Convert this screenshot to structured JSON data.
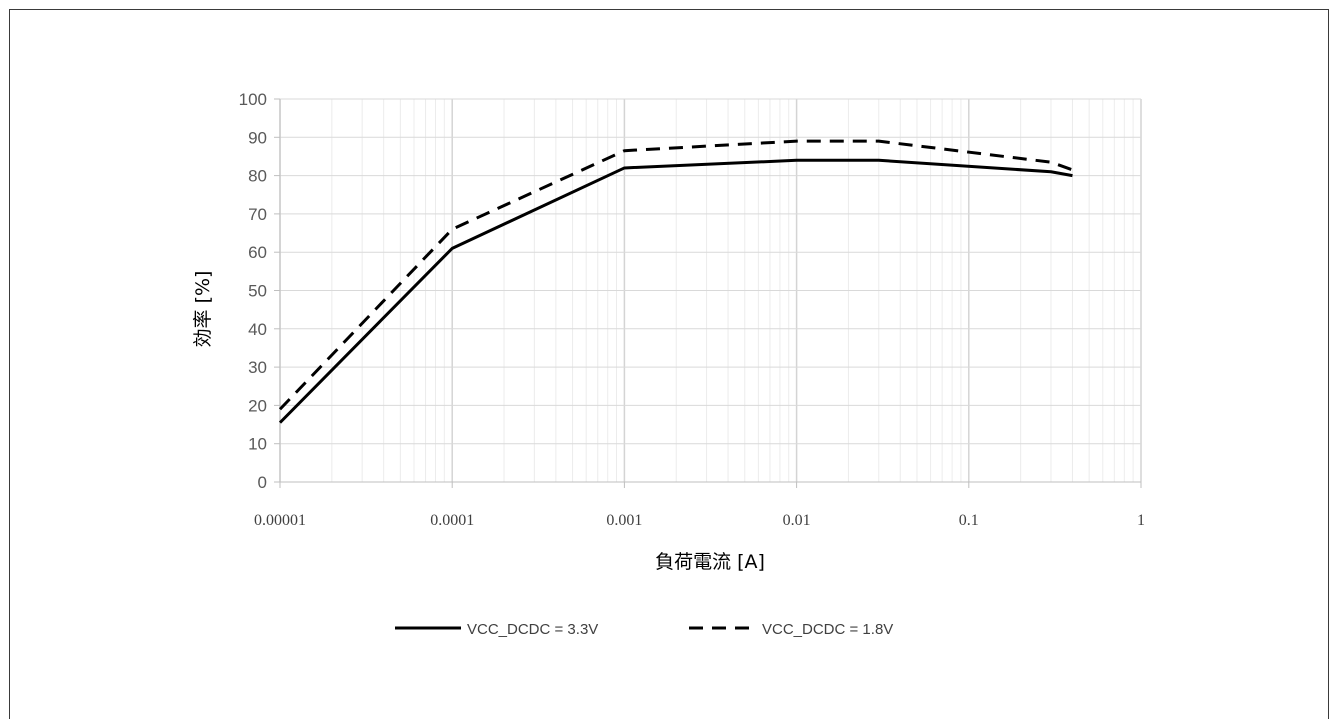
{
  "chart_data": {
    "type": "line",
    "xscale": "log",
    "xlim": [
      1e-05,
      1
    ],
    "ylim": [
      0,
      100
    ],
    "xlabel": "負荷電流 [A]",
    "ylabel": "効率 [%]",
    "xticks": [
      "0.00001",
      "0.0001",
      "0.001",
      "0.01",
      "0.1",
      "1"
    ],
    "yticks": [
      "0",
      "10",
      "20",
      "30",
      "40",
      "50",
      "60",
      "70",
      "80",
      "90",
      "100"
    ],
    "grid": true,
    "legend_position": "bottom",
    "series": [
      {
        "name": "VCC_DCDC = 3.3V",
        "style": "solid",
        "color": "#000000",
        "x": [
          1e-05,
          0.0001,
          0.001,
          0.01,
          0.03,
          0.3,
          0.4
        ],
        "y": [
          15.5,
          61,
          82,
          84,
          84,
          81,
          80
        ]
      },
      {
        "name": "VCC_DCDC = 1.8V",
        "style": "dashed",
        "color": "#000000",
        "x": [
          1e-05,
          0.0001,
          0.001,
          0.01,
          0.03,
          0.3,
          0.4
        ],
        "y": [
          19,
          66,
          86.5,
          89,
          89,
          83.5,
          81.5
        ]
      }
    ]
  }
}
